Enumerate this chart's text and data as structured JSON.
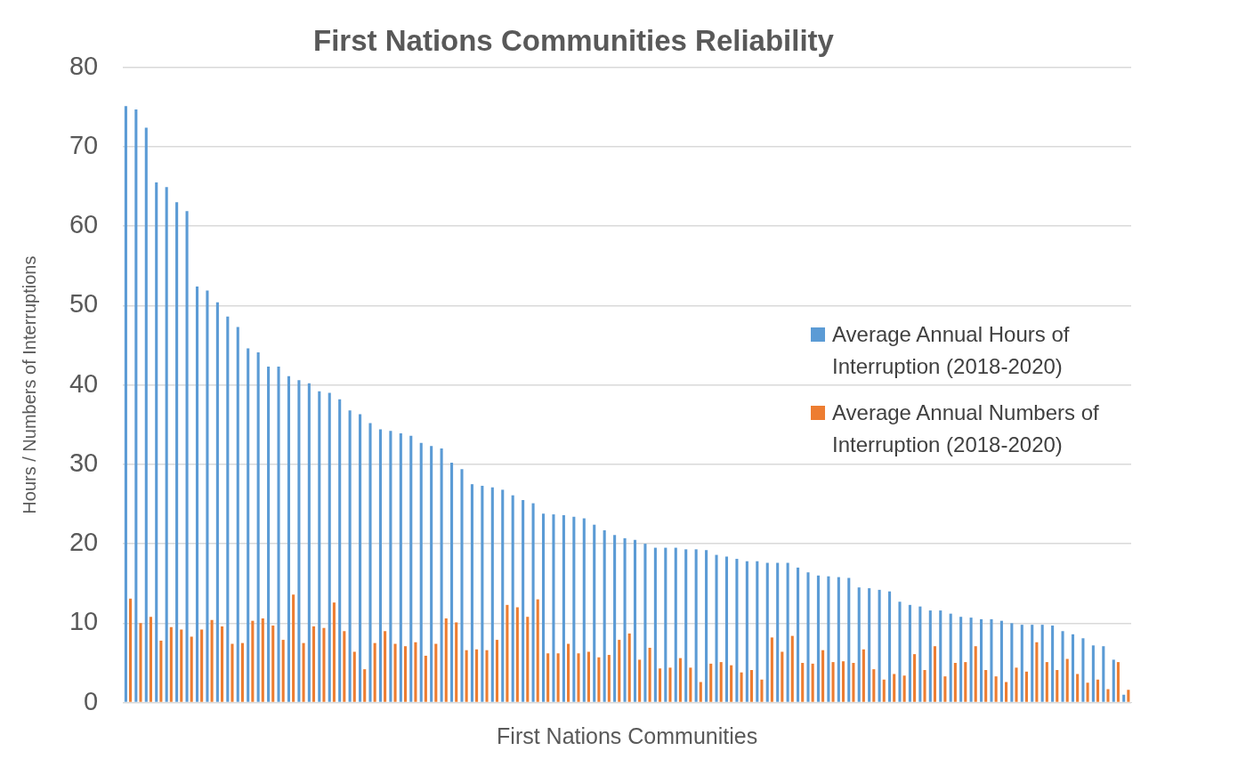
{
  "chart_data": {
    "type": "bar",
    "title": "First Nations Communities Reliability",
    "xlabel": "First Nations Communities",
    "ylabel": "Hours / Numbers of Interruptions",
    "categories": [
      null,
      null,
      null,
      null,
      null,
      null,
      null,
      null,
      null,
      null,
      null,
      null,
      null,
      null,
      null,
      null,
      null,
      null,
      null,
      null,
      null,
      null,
      null,
      null,
      null,
      null,
      null,
      null,
      null,
      null,
      null,
      null,
      null,
      null,
      null,
      null,
      null,
      null,
      null,
      null,
      null,
      null,
      null,
      null,
      null,
      null,
      null,
      null,
      null,
      null,
      null,
      null,
      null,
      null,
      null,
      null,
      null,
      null,
      null,
      null,
      null,
      null,
      null,
      null,
      null,
      null,
      null,
      null,
      null,
      null,
      null,
      null,
      null,
      null,
      null,
      null,
      null,
      null,
      null,
      null,
      null,
      null,
      null,
      null,
      null,
      null,
      null,
      null,
      null,
      null,
      null,
      null,
      null,
      null,
      null,
      null,
      null,
      null,
      null
    ],
    "series": [
      {
        "name": "Average Annual Hours of Interruption (2018-2020)",
        "color": "#5b9bd5",
        "values": [
          75.1,
          74.7,
          72.4,
          65.5,
          64.9,
          63.0,
          61.9,
          52.4,
          51.9,
          50.4,
          48.6,
          47.3,
          44.6,
          44.1,
          42.3,
          42.3,
          41.1,
          40.6,
          40.2,
          39.2,
          39.0,
          38.2,
          36.8,
          36.3,
          35.2,
          34.4,
          34.2,
          33.9,
          33.6,
          32.7,
          32.3,
          32.0,
          30.2,
          29.4,
          27.5,
          27.3,
          27.1,
          26.8,
          26.1,
          25.5,
          25.1,
          23.8,
          23.7,
          23.6,
          23.4,
          23.2,
          22.4,
          21.7,
          21.1,
          20.7,
          20.5,
          20.0,
          19.5,
          19.5,
          19.5,
          19.3,
          19.3,
          19.2,
          18.6,
          18.4,
          18.1,
          17.8,
          17.8,
          17.6,
          17.6,
          17.6,
          17.0,
          16.4,
          16.0,
          15.9,
          15.8,
          15.7,
          14.5,
          14.4,
          14.2,
          14.0,
          12.7,
          12.3,
          12.1,
          11.6,
          11.6,
          11.2,
          10.8,
          10.7,
          10.5,
          10.5,
          10.3,
          10.0,
          9.8,
          9.8,
          9.8,
          9.7,
          9.0,
          8.6,
          8.1,
          7.2,
          7.1,
          5.4,
          1.0
        ]
      },
      {
        "name": "Average Annual Numbers of Interruption (2018-2020)",
        "color": "#ed7d31",
        "values": [
          13.1,
          10.0,
          10.8,
          7.8,
          9.5,
          9.2,
          8.3,
          9.2,
          10.4,
          9.6,
          7.4,
          7.5,
          10.3,
          10.6,
          9.7,
          7.9,
          13.6,
          7.5,
          9.6,
          9.4,
          12.6,
          9.0,
          6.4,
          4.2,
          7.5,
          9.0,
          7.4,
          7.1,
          7.6,
          5.9,
          7.4,
          10.6,
          10.1,
          6.6,
          6.7,
          6.6,
          7.9,
          12.3,
          12.0,
          10.8,
          13.0,
          6.2,
          6.2,
          7.4,
          6.2,
          6.4,
          5.7,
          6.0,
          7.9,
          8.7,
          5.4,
          6.9,
          4.3,
          4.4,
          5.6,
          4.4,
          2.6,
          4.9,
          5.1,
          4.7,
          3.8,
          4.1,
          2.9,
          8.2,
          6.4,
          8.4,
          5.0,
          4.9,
          6.6,
          5.1,
          5.2,
          5.0,
          6.7,
          4.2,
          2.9,
          3.6,
          3.4,
          6.1,
          4.1,
          7.1,
          3.3,
          5.0,
          5.1,
          7.1,
          4.1,
          3.3,
          2.6,
          4.4,
          3.9,
          7.6,
          5.1,
          4.1,
          5.5,
          3.6,
          2.5,
          2.9,
          1.7,
          5.1,
          1.6
        ]
      }
    ],
    "ylim": [
      0,
      80
    ],
    "yticks": [
      0,
      10,
      20,
      30,
      40,
      50,
      60,
      70,
      80
    ],
    "grid": "y",
    "legend": "right"
  }
}
